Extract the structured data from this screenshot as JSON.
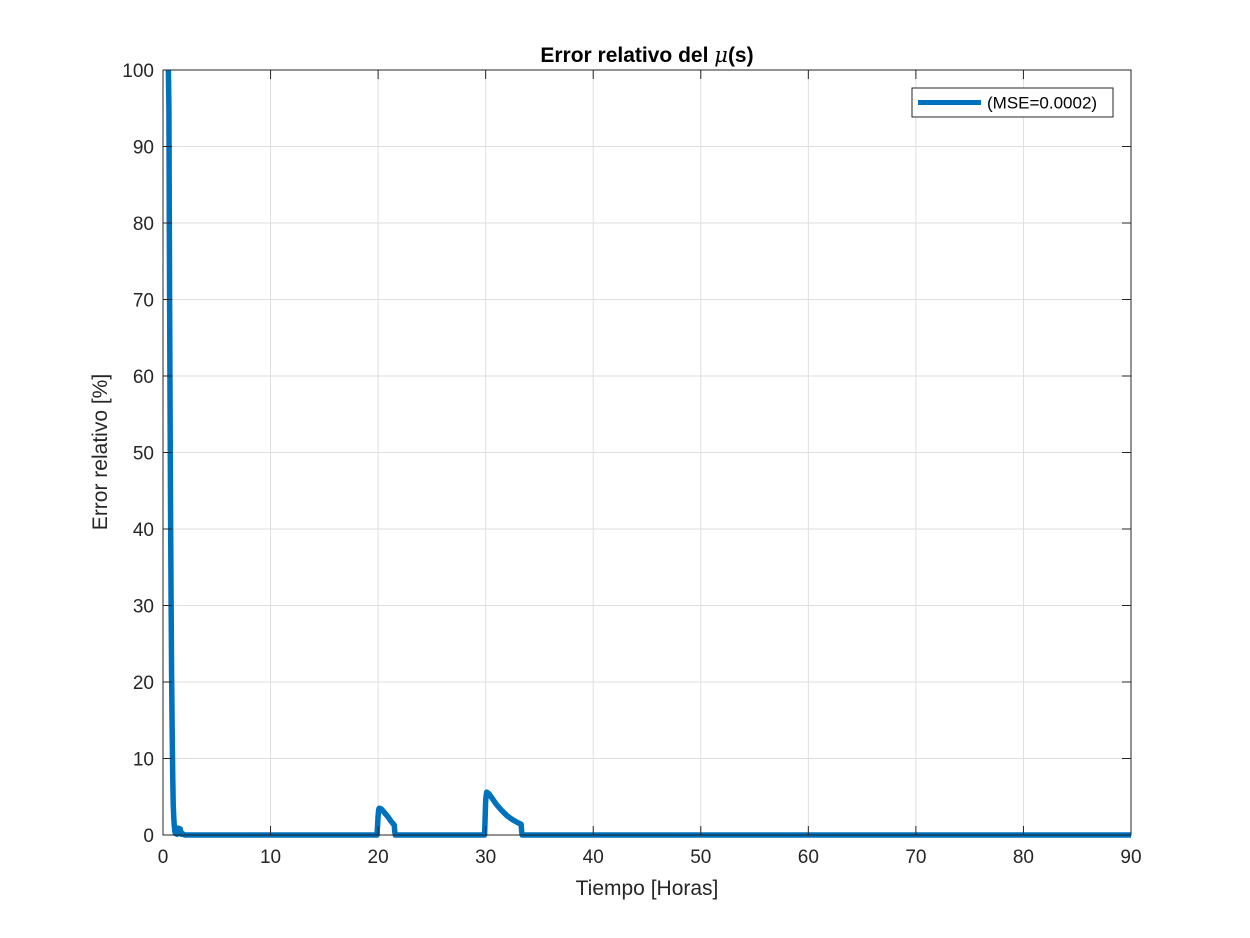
{
  "chart_data": {
    "type": "line",
    "title_prefix": "Error relativo del ",
    "title_symbol": "μ",
    "title_suffix": "(s)",
    "xlabel": "Tiempo [Horas]",
    "ylabel": "Error relativo [%]",
    "xlim": [
      0,
      90
    ],
    "ylim": [
      0,
      100
    ],
    "xticks": [
      0,
      10,
      20,
      30,
      40,
      50,
      60,
      70,
      80,
      90
    ],
    "yticks": [
      0,
      10,
      20,
      30,
      40,
      50,
      60,
      70,
      80,
      90,
      100
    ],
    "xtick_labels": [
      "0",
      "10",
      "20",
      "30",
      "40",
      "50",
      "60",
      "70",
      "80",
      "90"
    ],
    "ytick_labels": [
      "0",
      "10",
      "20",
      "30",
      "40",
      "50",
      "60",
      "70",
      "80",
      "90",
      "100"
    ],
    "grid": true,
    "legend_position": "top-right",
    "series": [
      {
        "name": "(MSE=0.0002)",
        "color": "#0072BD",
        "x": [
          0.5,
          0.55,
          0.6,
          0.65,
          0.7,
          0.75,
          0.8,
          0.85,
          0.9,
          0.95,
          1.0,
          1.05,
          1.1,
          1.15,
          1.2,
          1.3,
          1.4,
          1.5,
          1.6,
          1.7,
          1.8,
          2.0,
          5,
          10,
          15,
          19.9,
          20.0,
          20.05,
          20.1,
          20.3,
          20.6,
          20.9,
          21.2,
          21.5,
          21.55,
          21.6,
          25,
          29.9,
          30.0,
          30.05,
          30.1,
          30.3,
          30.6,
          31.0,
          31.5,
          32.0,
          32.5,
          33.0,
          33.3,
          33.35,
          33.4,
          40,
          50,
          60,
          70,
          80,
          90
        ],
        "y": [
          100,
          95,
          75,
          58,
          43,
          31,
          21,
          14,
          8,
          4,
          2.3,
          1.2,
          0.5,
          0.2,
          0.8,
          0.1,
          0.9,
          0.3,
          0.8,
          0.1,
          0.2,
          0,
          0,
          0,
          0,
          0,
          2.5,
          3.3,
          3.5,
          3.4,
          2.9,
          2.4,
          1.8,
          1.3,
          0.4,
          0,
          0,
          0,
          4.5,
          5.2,
          5.6,
          5.4,
          4.8,
          4.0,
          3.2,
          2.5,
          2.0,
          1.6,
          1.4,
          0.4,
          0,
          0,
          0,
          0,
          0,
          0,
          0
        ]
      }
    ]
  }
}
